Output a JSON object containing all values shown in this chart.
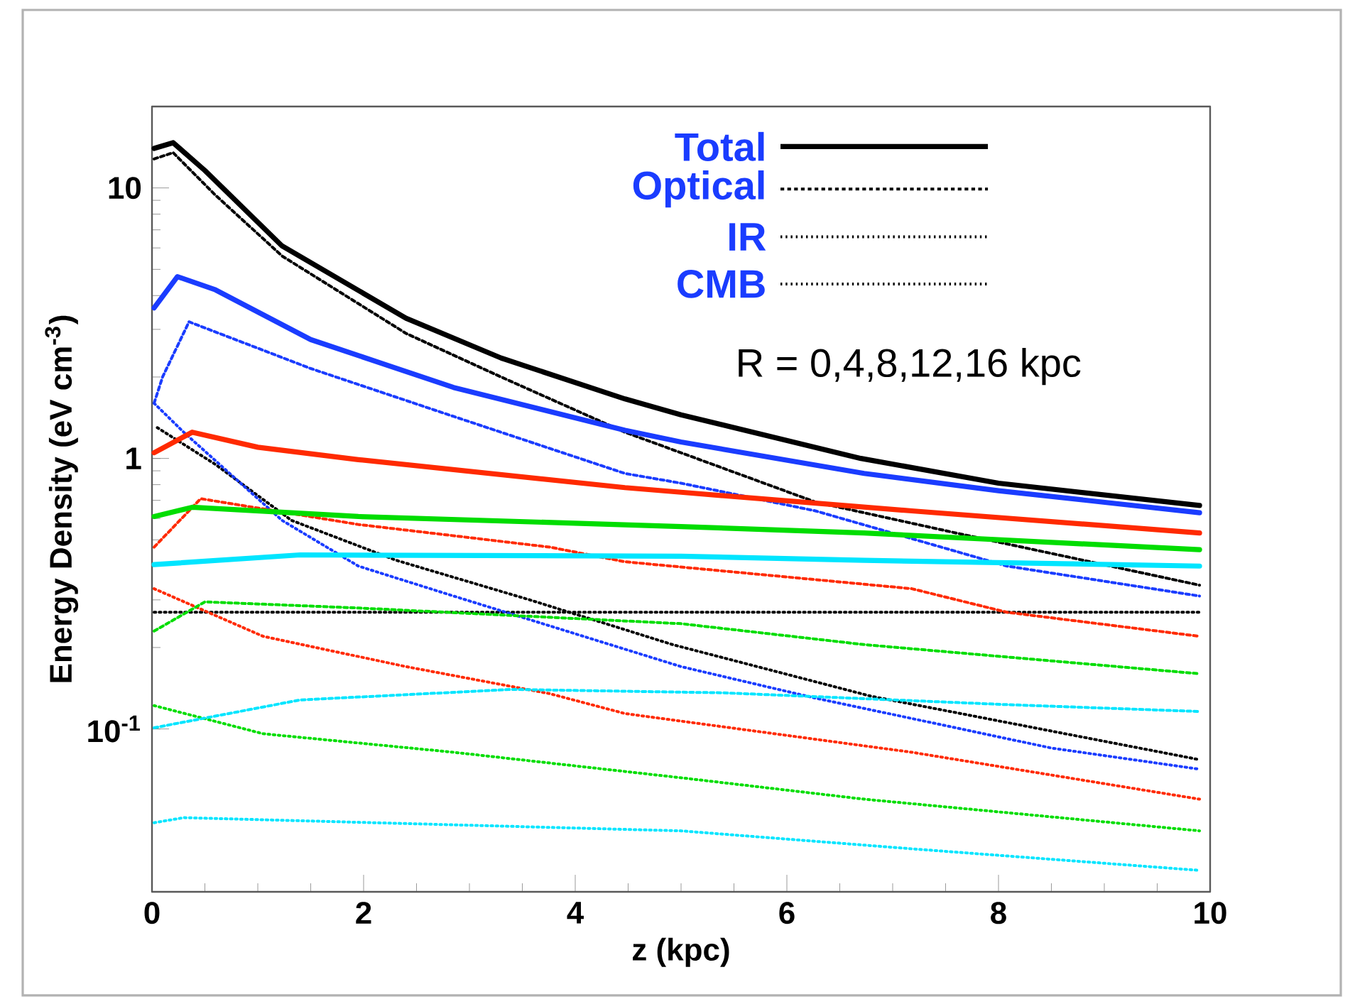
{
  "chart_data": {
    "type": "line",
    "xlabel": "z (kpc)",
    "ylabel": "Energy Density (eV cm$^{-3}$)",
    "xlim": [
      0,
      10
    ],
    "ylim": [
      0.025,
      20
    ],
    "log": "y",
    "xticks": [
      0,
      2,
      4,
      6,
      8,
      10
    ],
    "yticks": [
      {
        "value": 0.1,
        "label": "10$^{-1}$"
      },
      1,
      10
    ],
    "annotations": [
      "Total",
      "Optical",
      "IR",
      "CMB",
      "R = 0,4,8,12,16 kpc"
    ],
    "series": [
      {
        "color": "#000000",
        "line_style": "solid",
        "x": [
          0.02,
          0.2,
          0.5,
          1.23,
          2.4,
          3.3,
          4.47,
          5.0,
          6.7,
          8.0,
          9.9
        ],
        "values": [
          14,
          14.7,
          11.6,
          6.1,
          3.3,
          2.35,
          1.66,
          1.45,
          1.0,
          0.81,
          0.67
        ]
      },
      {
        "color": "#000000",
        "line_style": "dashed",
        "x": [
          0.02,
          0.2,
          0.6,
          1.23,
          2.4,
          3.3,
          4.47,
          6.27,
          7.6,
          9.9
        ],
        "values": [
          12.8,
          13.5,
          9.4,
          5.6,
          2.9,
          2.0,
          1.25,
          0.69,
          0.53,
          0.34
        ]
      },
      {
        "color": "#000000",
        "line_style": "dotted",
        "x": [
          0.05,
          0.6,
          1.32,
          2.31,
          3.57,
          4.92,
          6.8,
          9.9
        ],
        "values": [
          1.3,
          0.95,
          0.59,
          0.42,
          0.3,
          0.205,
          0.132,
          0.077
        ]
      },
      {
        "color": "#000000",
        "line_style": "dotted",
        "x": [
          0.02,
          9.9
        ],
        "values": [
          0.27,
          0.27
        ]
      },
      {
        "color": "#1a3cff",
        "line_style": "solid",
        "x": [
          0.02,
          0.24,
          0.6,
          1.5,
          2.85,
          4.47,
          5.0,
          6.73,
          8.0,
          9.9
        ],
        "values": [
          3.6,
          4.7,
          4.2,
          2.75,
          1.83,
          1.27,
          1.15,
          0.88,
          0.76,
          0.63
        ]
      },
      {
        "color": "#1a3cff",
        "line_style": "dashed",
        "x": [
          0.02,
          0.1,
          0.35,
          1.5,
          2.85,
          4.47,
          5.0,
          6.27,
          8.08,
          9.9
        ],
        "values": [
          1.6,
          2.0,
          3.2,
          2.15,
          1.43,
          0.88,
          0.81,
          0.64,
          0.4,
          0.31
        ]
      },
      {
        "color": "#1a3cff",
        "line_style": "dotted",
        "x": [
          0.02,
          0.3,
          1.23,
          1.95,
          2.85,
          5.0,
          6.27,
          8.5,
          9.9
        ],
        "values": [
          1.6,
          1.25,
          0.59,
          0.4,
          0.31,
          0.17,
          0.13,
          0.085,
          0.071
        ]
      },
      {
        "color": "#ff2a00",
        "line_style": "solid",
        "x": [
          0.02,
          0.38,
          1.0,
          1.95,
          4.47,
          5.0,
          7.18,
          9.9
        ],
        "values": [
          1.05,
          1.25,
          1.1,
          0.99,
          0.78,
          0.75,
          0.64,
          0.53
        ]
      },
      {
        "color": "#ff2a00",
        "line_style": "dashed",
        "x": [
          0.02,
          0.46,
          1.95,
          3.76,
          4.47,
          7.18,
          8.08,
          9.9
        ],
        "values": [
          0.47,
          0.71,
          0.57,
          0.47,
          0.415,
          0.33,
          0.27,
          0.22
        ]
      },
      {
        "color": "#ff2a00",
        "line_style": "dotted",
        "x": [
          0.02,
          1.05,
          2.4,
          3.76,
          4.47,
          7.18,
          9.9
        ],
        "values": [
          0.33,
          0.22,
          0.17,
          0.135,
          0.114,
          0.082,
          0.055
        ]
      },
      {
        "color": "#00dd00",
        "line_style": "solid",
        "x": [
          0.02,
          0.38,
          1.95,
          5.0,
          6.73,
          9.9
        ],
        "values": [
          0.61,
          0.66,
          0.61,
          0.56,
          0.53,
          0.46
        ]
      },
      {
        "color": "#00dd00",
        "line_style": "dashed",
        "x": [
          0.02,
          0.5,
          1.95,
          5.0,
          6.73,
          9.9
        ],
        "values": [
          0.23,
          0.295,
          0.28,
          0.245,
          0.205,
          0.16
        ]
      },
      {
        "color": "#00dd00",
        "line_style": "dotted",
        "x": [
          0.02,
          1.05,
          2.85,
          5.0,
          6.73,
          9.9
        ],
        "values": [
          0.122,
          0.096,
          0.082,
          0.066,
          0.055,
          0.042
        ]
      },
      {
        "color": "#00e5ff",
        "line_style": "solid",
        "x": [
          0.02,
          1.4,
          5.0,
          6.73,
          9.9
        ],
        "values": [
          0.405,
          0.44,
          0.435,
          0.42,
          0.4
        ]
      },
      {
        "color": "#00e5ff",
        "line_style": "dashed",
        "x": [
          0.02,
          1.4,
          3.4,
          5.4,
          8.08,
          9.9
        ],
        "values": [
          0.101,
          0.128,
          0.14,
          0.136,
          0.123,
          0.116
        ]
      },
      {
        "color": "#00e5ff",
        "line_style": "dotted",
        "x": [
          0.02,
          0.3,
          5.0,
          7.2,
          9.9
        ],
        "values": [
          0.045,
          0.047,
          0.042,
          0.036,
          0.03
        ]
      }
    ]
  }
}
